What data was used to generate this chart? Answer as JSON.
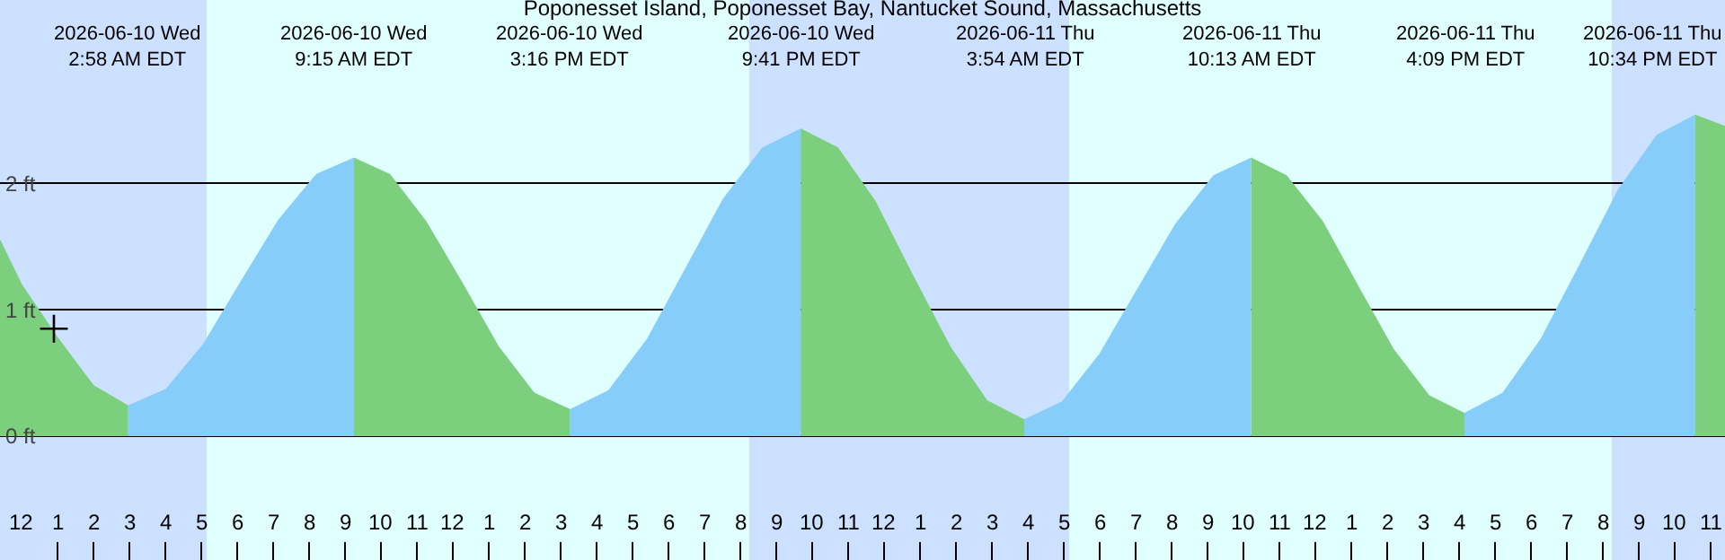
{
  "chart_data": {
    "type": "area",
    "title": "Poponesset Island, Poponesset Bay, Nantucket Sound, Massachusetts",
    "ylim": [
      -0.98,
      3.45
    ],
    "yticks": [
      {
        "value": 0,
        "label": "0 ft"
      },
      {
        "value": 1,
        "label": "1 ft"
      },
      {
        "value": 2,
        "label": "2 ft"
      }
    ],
    "xlim": [
      "2026-06-09T23:24",
      "2026-06-11T23:24"
    ],
    "xticks": [
      {
        "value": "2026-06-10T00:00",
        "label": "12"
      },
      {
        "value": "2026-06-10T01:00",
        "label": "1"
      },
      {
        "value": "2026-06-10T02:00",
        "label": "2"
      },
      {
        "value": "2026-06-10T03:00",
        "label": "3"
      },
      {
        "value": "2026-06-10T04:00",
        "label": "4"
      },
      {
        "value": "2026-06-10T05:00",
        "label": "5"
      },
      {
        "value": "2026-06-10T06:00",
        "label": "6"
      },
      {
        "value": "2026-06-10T07:00",
        "label": "7"
      },
      {
        "value": "2026-06-10T08:00",
        "label": "8"
      },
      {
        "value": "2026-06-10T09:00",
        "label": "9"
      },
      {
        "value": "2026-06-10T10:00",
        "label": "10"
      },
      {
        "value": "2026-06-10T11:00",
        "label": "11"
      },
      {
        "value": "2026-06-10T12:00",
        "label": "12"
      },
      {
        "value": "2026-06-10T13:00",
        "label": "1"
      },
      {
        "value": "2026-06-10T14:00",
        "label": "2"
      },
      {
        "value": "2026-06-10T15:00",
        "label": "3"
      },
      {
        "value": "2026-06-10T16:00",
        "label": "4"
      },
      {
        "value": "2026-06-10T17:00",
        "label": "5"
      },
      {
        "value": "2026-06-10T18:00",
        "label": "6"
      },
      {
        "value": "2026-06-10T19:00",
        "label": "7"
      },
      {
        "value": "2026-06-10T20:00",
        "label": "8"
      },
      {
        "value": "2026-06-10T21:00",
        "label": "9"
      },
      {
        "value": "2026-06-10T22:00",
        "label": "10"
      },
      {
        "value": "2026-06-10T23:00",
        "label": "11"
      },
      {
        "value": "2026-06-11T00:00",
        "label": "12"
      },
      {
        "value": "2026-06-11T01:00",
        "label": "1"
      },
      {
        "value": "2026-06-11T02:00",
        "label": "2"
      },
      {
        "value": "2026-06-11T03:00",
        "label": "3"
      },
      {
        "value": "2026-06-11T04:00",
        "label": "4"
      },
      {
        "value": "2026-06-11T05:00",
        "label": "5"
      },
      {
        "value": "2026-06-11T06:00",
        "label": "6"
      },
      {
        "value": "2026-06-11T07:00",
        "label": "7"
      },
      {
        "value": "2026-06-11T08:00",
        "label": "8"
      },
      {
        "value": "2026-06-11T09:00",
        "label": "9"
      },
      {
        "value": "2026-06-11T10:00",
        "label": "10"
      },
      {
        "value": "2026-06-11T11:00",
        "label": "11"
      },
      {
        "value": "2026-06-11T12:00",
        "label": "12"
      },
      {
        "value": "2026-06-11T13:00",
        "label": "1"
      },
      {
        "value": "2026-06-11T14:00",
        "label": "2"
      },
      {
        "value": "2026-06-11T15:00",
        "label": "3"
      },
      {
        "value": "2026-06-11T16:00",
        "label": "4"
      },
      {
        "value": "2026-06-11T17:00",
        "label": "5"
      },
      {
        "value": "2026-06-11T18:00",
        "label": "6"
      },
      {
        "value": "2026-06-11T19:00",
        "label": "7"
      },
      {
        "value": "2026-06-11T20:00",
        "label": "8"
      },
      {
        "value": "2026-06-11T21:00",
        "label": "9"
      },
      {
        "value": "2026-06-11T22:00",
        "label": "10"
      },
      {
        "value": "2026-06-11T23:00",
        "label": "11"
      }
    ],
    "grid": "y",
    "series": [
      {
        "color": "#7ccf7c",
        "x": [
          "2026-06-09T23:24",
          "2026-06-10T00:00",
          "2026-06-10T01:00",
          "2026-06-10T02:00",
          "2026-06-10T02:58"
        ],
        "values": [
          1.55,
          1.2,
          0.78,
          0.4,
          0.24
        ]
      },
      {
        "color": "#87cdfa",
        "x": [
          "2026-06-10T02:58",
          "2026-06-10T04:01",
          "2026-06-10T05:04",
          "2026-06-10T06:06",
          "2026-06-10T07:09",
          "2026-06-10T08:12",
          "2026-06-10T09:15"
        ],
        "values": [
          0.24,
          0.37,
          0.73,
          1.22,
          1.71,
          2.07,
          2.2
        ]
      },
      {
        "color": "#7ccf7c",
        "x": [
          "2026-06-10T09:15",
          "2026-06-10T10:15",
          "2026-06-10T11:15",
          "2026-06-10T12:16",
          "2026-06-10T13:16",
          "2026-06-10T14:16",
          "2026-06-10T15:16"
        ],
        "values": [
          2.2,
          2.07,
          1.7,
          1.21,
          0.71,
          0.34,
          0.21
        ]
      },
      {
        "color": "#87cdfa",
        "x": [
          "2026-06-10T15:16",
          "2026-06-10T16:20",
          "2026-06-10T17:25",
          "2026-06-10T18:28",
          "2026-06-10T19:32",
          "2026-06-10T20:37",
          "2026-06-10T21:41"
        ],
        "values": [
          0.21,
          0.36,
          0.77,
          1.32,
          1.88,
          2.28,
          2.43
        ]
      },
      {
        "color": "#7ccf7c",
        "x": [
          "2026-06-10T21:41",
          "2026-06-10T22:43",
          "2026-06-10T23:45",
          "2026-06-11T00:47",
          "2026-06-11T01:50",
          "2026-06-11T02:52",
          "2026-06-11T03:54"
        ],
        "values": [
          2.43,
          2.28,
          1.86,
          1.28,
          0.71,
          0.28,
          0.13
        ]
      },
      {
        "color": "#87cdfa",
        "x": [
          "2026-06-11T03:54",
          "2026-06-11T04:57",
          "2026-06-11T06:00",
          "2026-06-11T07:04",
          "2026-06-11T08:07",
          "2026-06-11T09:10",
          "2026-06-11T10:13"
        ],
        "values": [
          0.13,
          0.27,
          0.65,
          1.17,
          1.68,
          2.06,
          2.2
        ]
      },
      {
        "color": "#7ccf7c",
        "x": [
          "2026-06-11T10:13",
          "2026-06-11T11:12",
          "2026-06-11T12:12",
          "2026-06-11T13:11",
          "2026-06-11T14:10",
          "2026-06-11T15:10",
          "2026-06-11T16:09"
        ],
        "values": [
          2.2,
          2.06,
          1.7,
          1.19,
          0.69,
          0.32,
          0.18
        ]
      },
      {
        "color": "#87cdfa",
        "x": [
          "2026-06-11T16:09",
          "2026-06-11T17:13",
          "2026-06-11T18:17",
          "2026-06-11T19:22",
          "2026-06-11T20:26",
          "2026-06-11T21:30",
          "2026-06-11T22:34"
        ],
        "values": [
          0.18,
          0.34,
          0.77,
          1.36,
          1.95,
          2.38,
          2.54
        ]
      },
      {
        "color": "#7ccf7c",
        "x": [
          "2026-06-11T22:34",
          "2026-06-11T23:24"
        ],
        "values": [
          2.54,
          2.45
        ]
      },
      {
        "type": "scatter",
        "marker": "cross",
        "color": "#000000",
        "x": [
          "2026-06-10T00:54"
        ],
        "values": [
          0.85
        ]
      }
    ],
    "bands": [
      {
        "axis": "x",
        "from": "2026-06-09T23:24",
        "to": "2026-06-10T05:09",
        "color": "#cce0ff"
      },
      {
        "axis": "x",
        "from": "2026-06-10T05:09",
        "to": "2026-06-10T20:15",
        "color": "#e0ffff"
      },
      {
        "axis": "x",
        "from": "2026-06-10T20:15",
        "to": "2026-06-11T05:09",
        "color": "#cce0ff"
      },
      {
        "axis": "x",
        "from": "2026-06-11T05:09",
        "to": "2026-06-11T20:15",
        "color": "#e0ffff"
      },
      {
        "axis": "x",
        "from": "2026-06-11T20:15",
        "to": "2026-06-11T23:24",
        "color": "#cce0ff"
      }
    ],
    "annotations": [
      "2026-06-10 Wed\n2:58 AM EDT",
      "2026-06-10 Wed\n9:15 AM EDT",
      "2026-06-10 Wed\n3:16 PM EDT",
      "2026-06-10 Wed\n9:41 PM EDT",
      "2026-06-11 Thu\n3:54 AM EDT",
      "2026-06-11 Thu\n10:13 AM EDT",
      "2026-06-11 Thu\n4:09 PM EDT",
      "2026-06-11 Thu\n10:34 PM EDT"
    ]
  }
}
